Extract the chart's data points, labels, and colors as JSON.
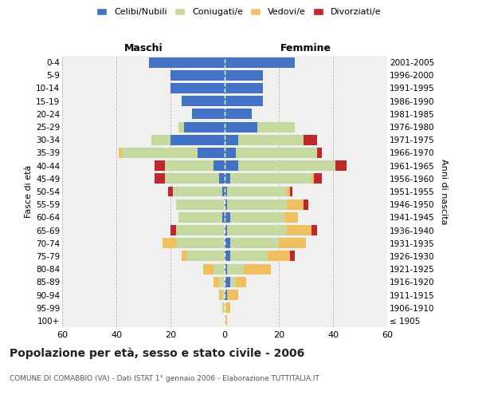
{
  "age_groups": [
    "100+",
    "95-99",
    "90-94",
    "85-89",
    "80-84",
    "75-79",
    "70-74",
    "65-69",
    "60-64",
    "55-59",
    "50-54",
    "45-49",
    "40-44",
    "35-39",
    "30-34",
    "25-29",
    "20-24",
    "15-19",
    "10-14",
    "5-9",
    "0-4"
  ],
  "birth_years": [
    "≤ 1905",
    "1906-1910",
    "1911-1915",
    "1916-1920",
    "1921-1925",
    "1926-1930",
    "1931-1935",
    "1936-1940",
    "1941-1945",
    "1946-1950",
    "1951-1955",
    "1956-1960",
    "1961-1965",
    "1966-1970",
    "1971-1975",
    "1976-1980",
    "1981-1985",
    "1986-1990",
    "1991-1995",
    "1996-2000",
    "2001-2005"
  ],
  "male_celibi": [
    0,
    0,
    0,
    0,
    0,
    0,
    0,
    0,
    1,
    0,
    1,
    2,
    4,
    10,
    20,
    15,
    12,
    16,
    20,
    20,
    28
  ],
  "male_coniugati": [
    0,
    1,
    1,
    2,
    4,
    14,
    18,
    18,
    16,
    18,
    18,
    20,
    18,
    28,
    7,
    2,
    0,
    0,
    0,
    0,
    0
  ],
  "male_vedovi": [
    0,
    0,
    1,
    2,
    4,
    2,
    5,
    0,
    0,
    0,
    0,
    0,
    0,
    1,
    0,
    0,
    0,
    0,
    0,
    0,
    0
  ],
  "male_divorziati": [
    0,
    0,
    0,
    0,
    0,
    0,
    0,
    2,
    0,
    0,
    2,
    4,
    4,
    0,
    0,
    0,
    0,
    0,
    0,
    0,
    0
  ],
  "female_celibi": [
    0,
    0,
    1,
    2,
    1,
    2,
    2,
    1,
    2,
    1,
    1,
    2,
    5,
    4,
    5,
    12,
    10,
    14,
    14,
    14,
    26
  ],
  "female_coniugati": [
    0,
    0,
    0,
    2,
    6,
    14,
    18,
    22,
    20,
    22,
    22,
    30,
    36,
    30,
    24,
    14,
    0,
    0,
    0,
    0,
    0
  ],
  "female_vedovi": [
    1,
    2,
    4,
    4,
    10,
    8,
    10,
    9,
    5,
    6,
    1,
    1,
    0,
    0,
    0,
    0,
    0,
    0,
    0,
    0,
    0
  ],
  "female_divorziati": [
    0,
    0,
    0,
    0,
    0,
    2,
    0,
    2,
    0,
    2,
    1,
    3,
    4,
    2,
    5,
    0,
    0,
    0,
    0,
    0,
    0
  ],
  "color_celibi": "#4472c4",
  "color_coniugati": "#c5d9a0",
  "color_vedovi": "#f0c060",
  "color_divorziati": "#c0272d",
  "title": "Popolazione per età, sesso e stato civile - 2006",
  "subtitle": "COMUNE DI COMABBIO (VA) - Dati ISTAT 1° gennaio 2006 - Elaborazione TUTTITALIA.IT",
  "xlabel_left": "Maschi",
  "xlabel_right": "Femmine",
  "ylabel_left": "Fasce di età",
  "ylabel_right": "Anni di nascita",
  "xlim": 60,
  "bg_color": "#ffffff",
  "plot_bg": "#f0f0f0",
  "grid_color": "#bbbbbb"
}
